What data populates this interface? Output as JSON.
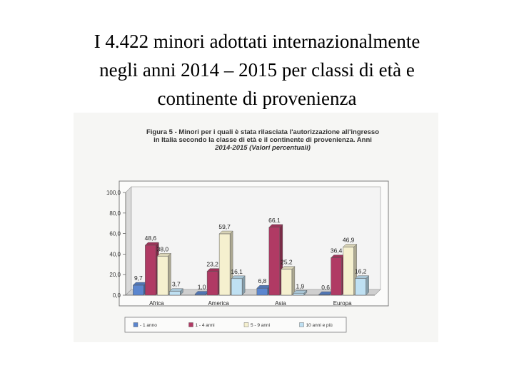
{
  "slide": {
    "title_lines": [
      "I 4.422 minori adottati internazionalmente",
      "negli anni 2014 – 2015  per classi di età e",
      "continente di provenienza"
    ]
  },
  "figure": {
    "caption_lines": [
      "Figura 5 - Minori per i quali è stata rilasciata l'autorizzazione all'ingresso",
      "in Italia secondo la classe di età e il continente di provenienza. Anni",
      "2014-2015 (Valori percentuali)"
    ]
  },
  "chart_data": {
    "type": "bar",
    "title": "Figura 5 - Minori per i quali è stata rilasciata l'autorizzazione all'ingresso in Italia secondo la classe di età e il continente di provenienza. Anni 2014-2015 (Valori percentuali)",
    "xlabel": "",
    "ylabel": "",
    "ylim": [
      0,
      100
    ],
    "y_ticks": [
      "0,0",
      "20,0",
      "40,0",
      "60,0",
      "80,0",
      "100,0"
    ],
    "categories": [
      "Africa",
      "America",
      "Asia",
      "Europa"
    ],
    "series": [
      {
        "name": "- 1 anno",
        "color": "#5b86cf",
        "values": [
          9.7,
          1.0,
          6.8,
          0.6
        ],
        "labels": [
          "9,7",
          "1,0",
          "6,8",
          "0,6"
        ]
      },
      {
        "name": "1 - 4 anni",
        "color": "#b03a64",
        "values": [
          48.6,
          23.2,
          66.1,
          36.4
        ],
        "labels": [
          "48,6",
          "23,2",
          "66,1",
          "36,4"
        ]
      },
      {
        "name": "5 - 9 anni",
        "color": "#f5f0cf",
        "values": [
          38.0,
          59.7,
          25.2,
          46.9
        ],
        "labels": [
          "38,0",
          "59,7",
          "25,2",
          "46,9"
        ]
      },
      {
        "name": "10 anni e più",
        "color": "#bfe0f2",
        "values": [
          3.7,
          16.1,
          1.9,
          16.2
        ],
        "labels": [
          "3,7",
          "16,1",
          "1,9",
          "16,2"
        ]
      }
    ],
    "grid": false,
    "legend": "bottom"
  }
}
